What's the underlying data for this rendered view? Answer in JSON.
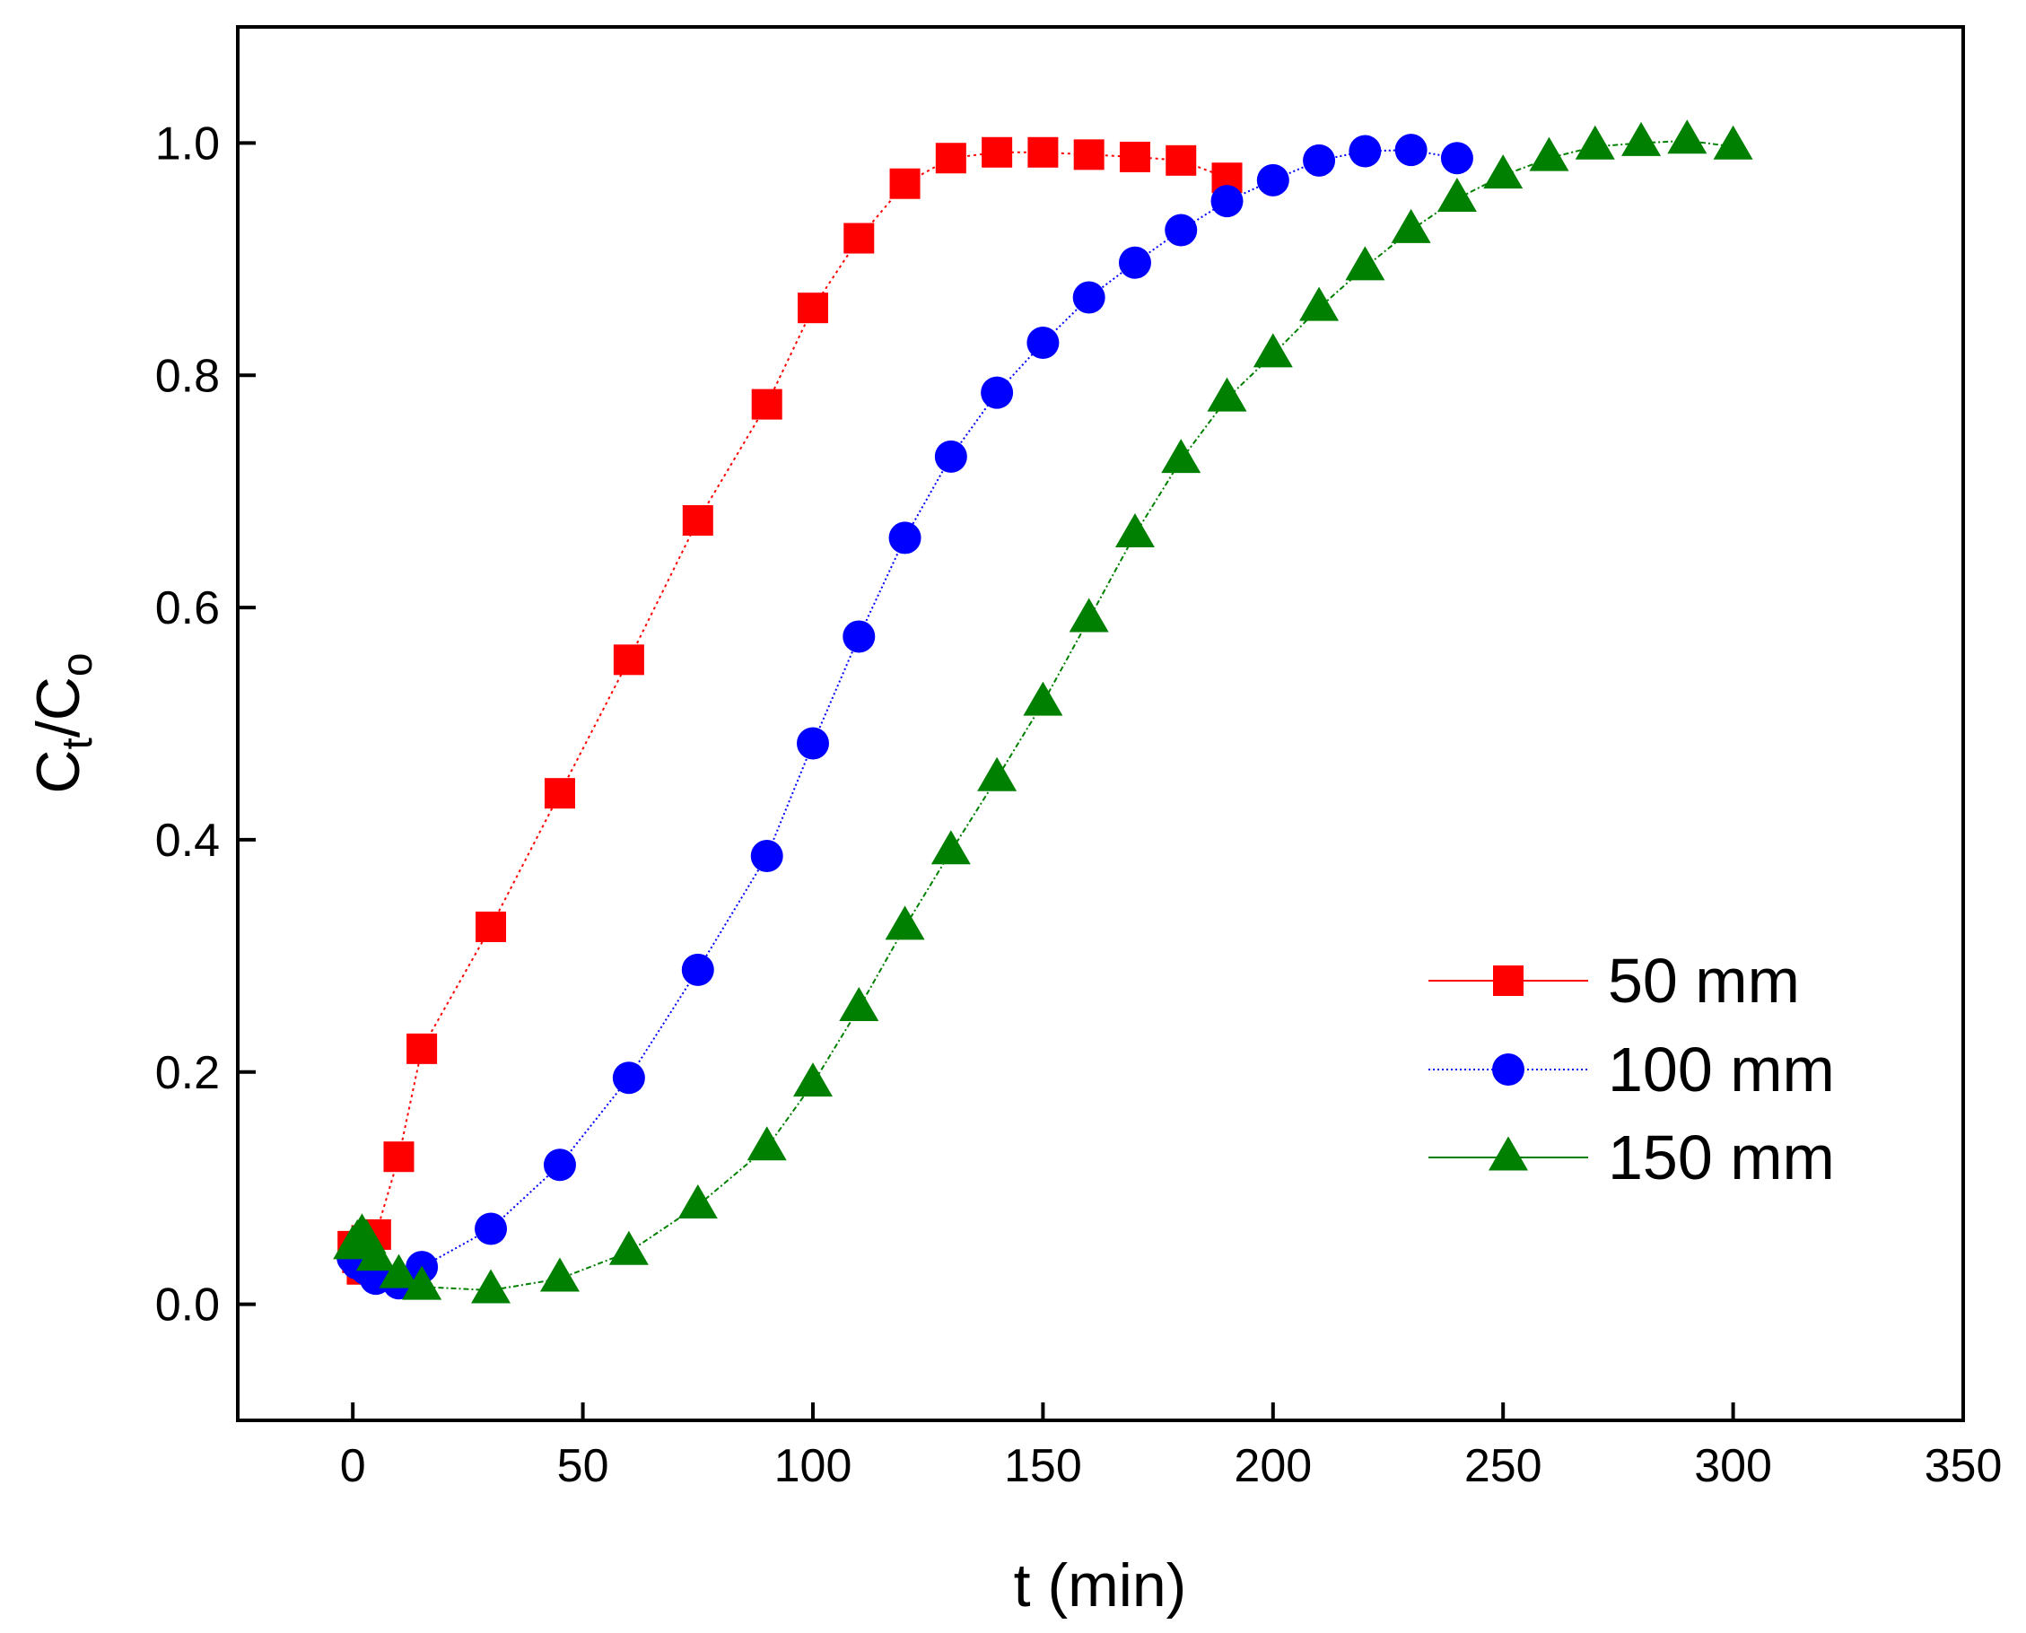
{
  "chart_data": {
    "type": "scatter",
    "title": "",
    "xlabel": "t (min)",
    "ylabel": {
      "main": "C",
      "sub1": "t",
      "slash": "/C",
      "sub2": "o"
    },
    "xlim": [
      -25,
      350
    ],
    "ylim": [
      -0.1,
      1.1
    ],
    "xticks": [
      0,
      50,
      100,
      150,
      200,
      250,
      300,
      350
    ],
    "xtick_labels": [
      "0",
      "50",
      "100",
      "150",
      "200",
      "250",
      "300",
      "350"
    ],
    "yticks": [
      0.0,
      0.2,
      0.4,
      0.6,
      0.8,
      1.0
    ],
    "ytick_labels": [
      "0.0",
      "0.2",
      "0.4",
      "0.6",
      "0.8",
      "1.0"
    ],
    "grid": false,
    "legend_position": "center-right",
    "series": [
      {
        "name": "50 mm",
        "color": "#ff0000",
        "marker": "square",
        "x": [
          0,
          1,
          2,
          3,
          5,
          10,
          15,
          30,
          45,
          60,
          75,
          90,
          100,
          110,
          120,
          130,
          140,
          150,
          160,
          170,
          180,
          190
        ],
        "y": [
          0.05,
          0.04,
          0.03,
          0.055,
          0.06,
          0.127,
          0.22,
          0.325,
          0.44,
          0.555,
          0.675,
          0.775,
          0.858,
          0.918,
          0.965,
          0.987,
          0.992,
          0.992,
          0.99,
          0.988,
          0.985,
          0.97
        ]
      },
      {
        "name": "100 mm",
        "color": "#0000ff",
        "marker": "circle",
        "x": [
          0,
          1,
          3,
          5,
          10,
          15,
          30,
          45,
          60,
          75,
          90,
          100,
          110,
          120,
          130,
          140,
          150,
          160,
          170,
          180,
          190,
          200,
          210,
          220,
          230,
          240
        ],
        "y": [
          0.04,
          0.035,
          0.03,
          0.022,
          0.018,
          0.032,
          0.065,
          0.12,
          0.195,
          0.288,
          0.386,
          0.483,
          0.575,
          0.66,
          0.73,
          0.785,
          0.828,
          0.867,
          0.897,
          0.925,
          0.95,
          0.968,
          0.985,
          0.993,
          0.994,
          0.987
        ]
      },
      {
        "name": "150 mm",
        "color": "#008000",
        "marker": "triangle",
        "x": [
          0,
          1,
          2,
          3,
          5,
          10,
          15,
          30,
          45,
          60,
          75,
          90,
          100,
          110,
          120,
          130,
          140,
          150,
          160,
          170,
          180,
          190,
          200,
          210,
          220,
          230,
          240,
          250,
          260,
          270,
          280,
          290,
          300
        ],
        "y": [
          0.05,
          0.055,
          0.06,
          0.055,
          0.04,
          0.025,
          0.015,
          0.012,
          0.022,
          0.045,
          0.085,
          0.135,
          0.19,
          0.255,
          0.325,
          0.39,
          0.453,
          0.518,
          0.59,
          0.663,
          0.727,
          0.78,
          0.818,
          0.858,
          0.893,
          0.925,
          0.952,
          0.972,
          0.987,
          0.997,
          1.0,
          1.002,
          0.997
        ]
      }
    ]
  }
}
